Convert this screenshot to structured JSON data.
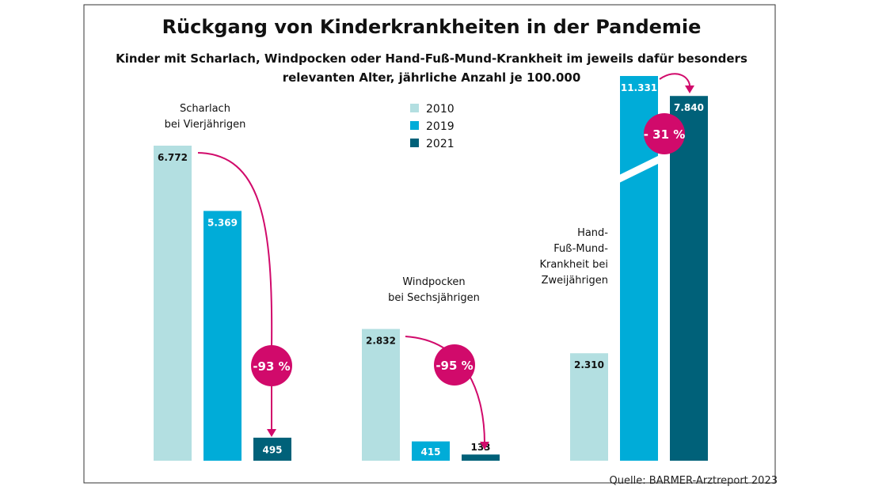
{
  "chart_data": {
    "type": "bar",
    "title": "Rückgang von Kinderkrankheiten in der Pandemie",
    "subtitle": [
      "Kinder mit Scharlach, Windpocken oder Hand-Fuß-Mund-Krankheit im jeweils dafür besonders",
      "relevanten Alter, jährliche Anzahl je 100.000"
    ],
    "source": "Quelle: BARMER-Arztreport 2023",
    "legend": {
      "placement": "top-center",
      "entries": [
        "2010",
        "2019",
        "2021"
      ]
    },
    "colors": {
      "2010": "#b3dfe1",
      "2019": "#00acd8",
      "2021": "#006179",
      "accent": "#d10a6b"
    },
    "axis_break": true,
    "groups": [
      {
        "label": [
          "Scharlach",
          "bei Vierjährigen"
        ],
        "values": [
          6772,
          5369,
          495
        ],
        "value_labels": [
          "6.772",
          "5.369",
          "495"
        ],
        "change": "-93 %"
      },
      {
        "label": [
          "Windpocken",
          "bei Sechsjährigen"
        ],
        "values": [
          2832,
          415,
          133
        ],
        "value_labels": [
          "2.832",
          "415",
          "133"
        ],
        "change": "-95 %"
      },
      {
        "label": [
          "Hand-",
          "Fuß-Mund-",
          "Krankheit bei",
          "Zweijährigen"
        ],
        "values": [
          2310,
          11331,
          7840
        ],
        "value_labels": [
          "2.310",
          "11.331",
          "7.840"
        ],
        "change": "- 31 %"
      }
    ]
  }
}
